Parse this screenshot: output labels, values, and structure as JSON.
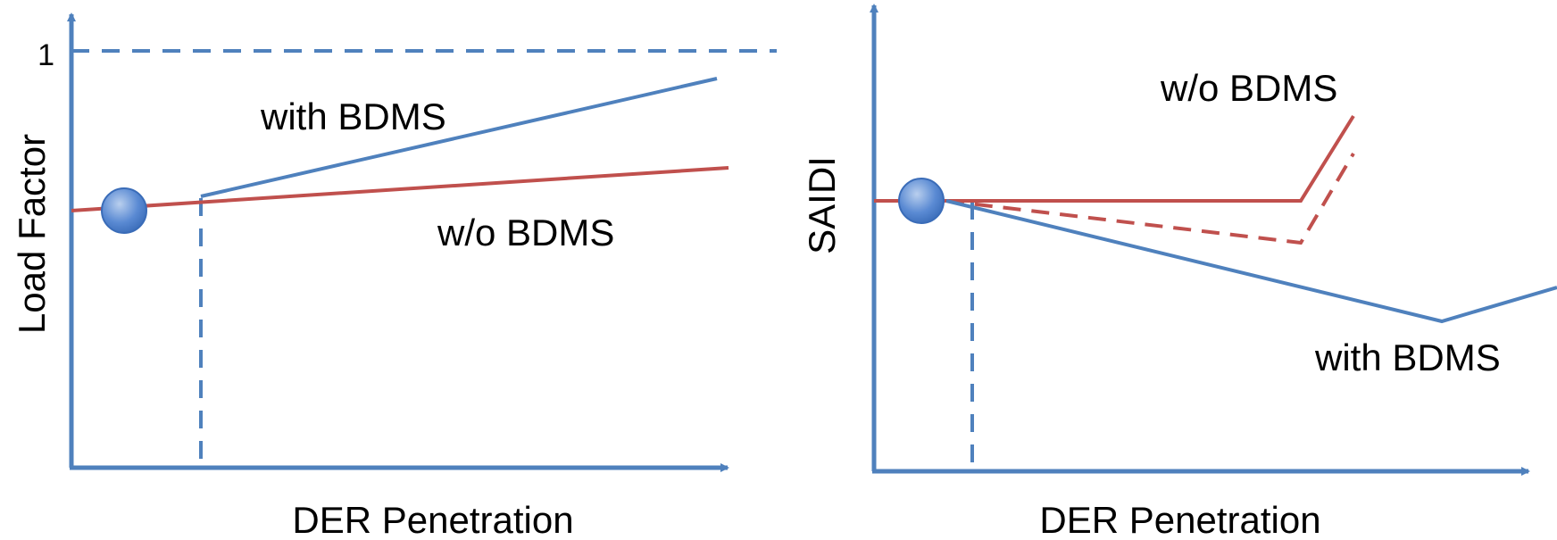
{
  "colors": {
    "axis": "#4f81bd",
    "with_bdms": "#4f81bd",
    "without_bdms": "#c0504d",
    "marker_fill": "#4f81bd",
    "text": "#000000"
  },
  "chart_data": [
    {
      "type": "line",
      "title": "",
      "xlabel": "DER Penetration",
      "ylabel": "Load Factor",
      "y_tick_labels": [
        "1"
      ],
      "xlim": [
        0,
        1
      ],
      "ylim": [
        0,
        1.05
      ],
      "reference_lines": [
        {
          "orientation": "horizontal",
          "value": 1,
          "style": "dashed"
        },
        {
          "orientation": "vertical",
          "value": 0.2,
          "style": "dashed"
        }
      ],
      "marker": {
        "x": 0.08,
        "y": 0.6
      },
      "series": [
        {
          "label": "with BDMS",
          "style": "solid",
          "points": [
            [
              0.2,
              0.63
            ],
            [
              0.98,
              0.97
            ]
          ]
        },
        {
          "label": "w/o BDMS",
          "style": "solid",
          "points": [
            [
              0.0,
              0.59
            ],
            [
              1.0,
              0.69
            ]
          ]
        }
      ],
      "annotations": [
        "with BDMS",
        "w/o BDMS"
      ]
    },
    {
      "type": "line",
      "title": "",
      "xlabel": "DER Penetration",
      "ylabel": "SAIDI",
      "xlim": [
        0,
        1
      ],
      "ylim": [
        0,
        1
      ],
      "reference_lines": [
        {
          "orientation": "vertical",
          "value": 0.15,
          "style": "dashed"
        }
      ],
      "marker": {
        "x": 0.075,
        "y": 0.61
      },
      "series": [
        {
          "label": "w/o BDMS",
          "style": "solid",
          "points": [
            [
              0.0,
              0.61
            ],
            [
              0.65,
              0.61
            ],
            [
              0.73,
              0.8
            ]
          ]
        },
        {
          "label": "w/o BDMS",
          "style": "dashed",
          "points": [
            [
              0.11,
              0.61
            ],
            [
              0.65,
              0.51
            ],
            [
              0.73,
              0.71
            ]
          ]
        },
        {
          "label": "with BDMS",
          "style": "solid",
          "points": [
            [
              0.11,
              0.61
            ],
            [
              0.87,
              0.33
            ],
            [
              1.0,
              0.41
            ]
          ]
        }
      ],
      "annotations": [
        "w/o BDMS",
        "with BDMS"
      ]
    }
  ]
}
